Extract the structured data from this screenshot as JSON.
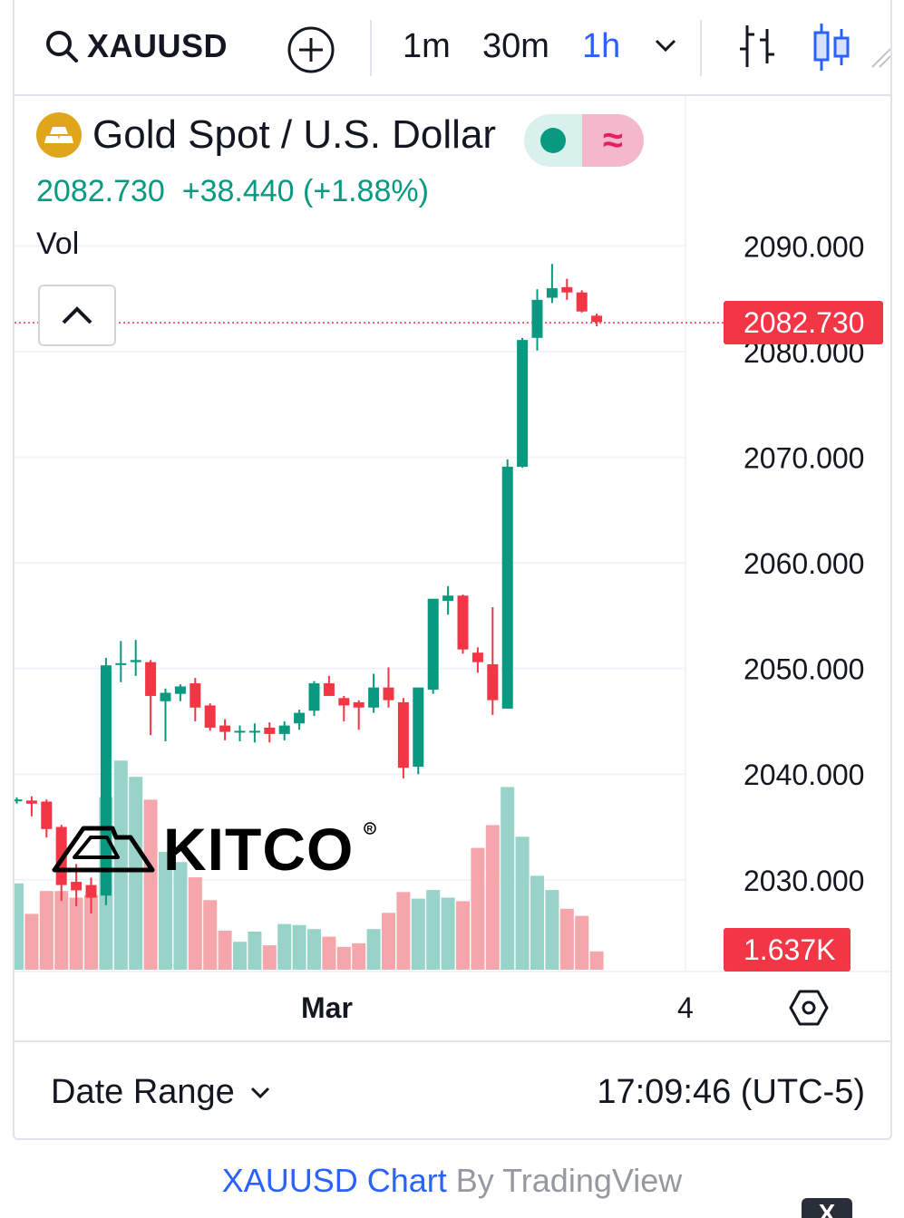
{
  "toolbar": {
    "symbol": "XAUUSD",
    "intervals": [
      "1m",
      "30m",
      "1h"
    ],
    "active_interval": "1h"
  },
  "legend": {
    "name": "Gold Spot / U.S. Dollar",
    "last_price": "2082.730",
    "change": "+38.440 (+1.88%)",
    "volume_label": "Vol"
  },
  "price_tag": "2082.730",
  "volume_tag": "1.637K",
  "watermark": "KITCO",
  "footer": {
    "date_range_label": "Date Range",
    "clock": "17:09:46 (UTC-5)"
  },
  "attribution": {
    "link": "XAUUSD Chart",
    "rest": " By TradingView"
  },
  "close_chip": "X",
  "colors": {
    "up": "#089981",
    "down": "#f23645",
    "up_volume": "#97d3c9",
    "down_volume": "#f4a6ab",
    "accent": "#2962ff",
    "coin": "#e0a51b"
  },
  "chart_data": {
    "type": "candlestick",
    "y_ticks": [
      "2090.000",
      "2080.000",
      "2070.000",
      "2060.000",
      "2050.000",
      "2040.000",
      "2030.000"
    ],
    "ylim": [
      2022.0,
      2097.5
    ],
    "x_labels": [
      "Mar",
      "4"
    ],
    "grid": true,
    "last_price": 2082.73,
    "candles": [
      {
        "o": 2037.6,
        "h": 2037.8,
        "l": 2037.2,
        "c": 2037.6,
        "v": 1.7
      },
      {
        "o": 2037.5,
        "h": 2037.9,
        "l": 2036.0,
        "c": 2037.2,
        "v": 1.1
      },
      {
        "o": 2037.4,
        "h": 2037.6,
        "l": 2034.0,
        "c": 2034.8,
        "v": 1.55
      },
      {
        "o": 2035.0,
        "h": 2035.2,
        "l": 2028.0,
        "c": 2029.5,
        "v": 1.55
      },
      {
        "o": 2029.8,
        "h": 2031.5,
        "l": 2027.5,
        "c": 2029.0,
        "v": 1.42
      },
      {
        "o": 2029.5,
        "h": 2030.2,
        "l": 2026.8,
        "c": 2028.3,
        "v": 1.47
      },
      {
        "o": 2028.5,
        "h": 2051.0,
        "l": 2027.6,
        "c": 2050.3,
        "v": 3.4
      },
      {
        "o": 2050.5,
        "h": 2052.6,
        "l": 2048.7,
        "c": 2050.5,
        "v": 4.12
      },
      {
        "o": 2050.6,
        "h": 2052.7,
        "l": 2049.3,
        "c": 2050.8,
        "v": 3.8
      },
      {
        "o": 2050.6,
        "h": 2050.8,
        "l": 2043.7,
        "c": 2047.4,
        "v": 3.35
      },
      {
        "o": 2046.9,
        "h": 2048.1,
        "l": 2043.1,
        "c": 2047.7,
        "v": 2.32
      },
      {
        "o": 2047.6,
        "h": 2048.5,
        "l": 2046.9,
        "c": 2048.3,
        "v": 2.12
      },
      {
        "o": 2048.6,
        "h": 2049.1,
        "l": 2045.0,
        "c": 2046.3,
        "v": 1.82
      },
      {
        "o": 2046.5,
        "h": 2046.7,
        "l": 2044.1,
        "c": 2044.4,
        "v": 1.37
      },
      {
        "o": 2044.6,
        "h": 2045.2,
        "l": 2043.2,
        "c": 2044.0,
        "v": 0.77
      },
      {
        "o": 2044.0,
        "h": 2044.6,
        "l": 2043.1,
        "c": 2044.1,
        "v": 0.55
      },
      {
        "o": 2044.0,
        "h": 2044.8,
        "l": 2043.0,
        "c": 2044.1,
        "v": 0.75
      },
      {
        "o": 2044.4,
        "h": 2044.9,
        "l": 2043.0,
        "c": 2043.8,
        "v": 0.48
      },
      {
        "o": 2043.8,
        "h": 2045.0,
        "l": 2043.2,
        "c": 2044.6,
        "v": 0.9
      },
      {
        "o": 2044.8,
        "h": 2046.1,
        "l": 2044.2,
        "c": 2045.8,
        "v": 0.88
      },
      {
        "o": 2046.0,
        "h": 2048.8,
        "l": 2045.5,
        "c": 2048.6,
        "v": 0.8
      },
      {
        "o": 2048.6,
        "h": 2049.3,
        "l": 2047.7,
        "c": 2047.4,
        "v": 0.65
      },
      {
        "o": 2047.2,
        "h": 2047.4,
        "l": 2045.0,
        "c": 2046.5,
        "v": 0.45
      },
      {
        "o": 2046.8,
        "h": 2047.0,
        "l": 2044.2,
        "c": 2046.3,
        "v": 0.52
      },
      {
        "o": 2046.3,
        "h": 2049.5,
        "l": 2045.8,
        "c": 2048.2,
        "v": 0.8
      },
      {
        "o": 2048.2,
        "h": 2050.1,
        "l": 2046.3,
        "c": 2047.0,
        "v": 1.12
      },
      {
        "o": 2046.8,
        "h": 2047.2,
        "l": 2039.6,
        "c": 2040.6,
        "v": 1.53
      },
      {
        "o": 2040.7,
        "h": 2048.1,
        "l": 2040.0,
        "c": 2048.2,
        "v": 1.4
      },
      {
        "o": 2048.0,
        "h": 2056.6,
        "l": 2047.6,
        "c": 2056.6,
        "v": 1.57
      },
      {
        "o": 2056.4,
        "h": 2057.8,
        "l": 2055.1,
        "c": 2056.9,
        "v": 1.42
      },
      {
        "o": 2056.9,
        "h": 2057.0,
        "l": 2051.4,
        "c": 2051.8,
        "v": 1.35
      },
      {
        "o": 2051.5,
        "h": 2052.0,
        "l": 2049.6,
        "c": 2050.6,
        "v": 2.4
      },
      {
        "o": 2050.4,
        "h": 2055.8,
        "l": 2045.6,
        "c": 2047.0,
        "v": 2.85
      },
      {
        "o": 2046.2,
        "h": 2069.8,
        "l": 2046.8,
        "c": 2069.1,
        "v": 3.6
      },
      {
        "o": 2069.1,
        "h": 2081.3,
        "l": 2069.0,
        "c": 2081.1,
        "v": 2.62
      },
      {
        "o": 2081.3,
        "h": 2085.9,
        "l": 2080.1,
        "c": 2084.9,
        "v": 1.85
      },
      {
        "o": 2085.1,
        "h": 2088.3,
        "l": 2084.6,
        "c": 2086.0,
        "v": 1.57
      },
      {
        "o": 2086.1,
        "h": 2086.9,
        "l": 2084.9,
        "c": 2085.6,
        "v": 1.2
      },
      {
        "o": 2085.6,
        "h": 2085.8,
        "l": 2083.7,
        "c": 2083.8,
        "v": 1.06
      },
      {
        "o": 2083.4,
        "h": 2083.6,
        "l": 2082.4,
        "c": 2082.8,
        "v": 0.36
      }
    ]
  }
}
